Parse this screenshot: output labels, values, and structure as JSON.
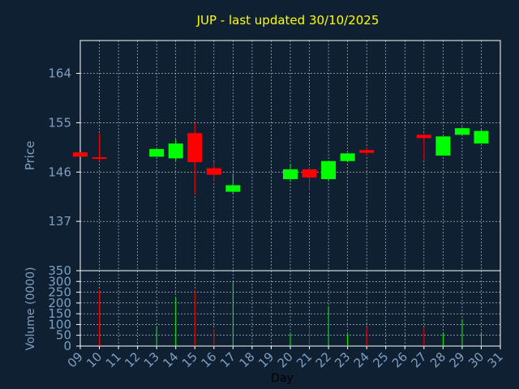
{
  "chart_data": {
    "type": "candlestick",
    "title": "JUP - last updated 30/10/2025",
    "xlabel": "Day",
    "price_ylabel": "Price",
    "volume_ylabel": "Volume (0000)",
    "price_ylim": [
      128,
      170
    ],
    "price_yticks": [
      "164",
      "155",
      "146",
      "137"
    ],
    "price_ytick_values": [
      164,
      155,
      146,
      137
    ],
    "volume_ylim": [
      0,
      350
    ],
    "volume_yticks": [
      "350",
      "300",
      "250",
      "200",
      "150",
      "100",
      "50",
      "0"
    ],
    "volume_ytick_values": [
      350,
      300,
      250,
      200,
      150,
      100,
      50,
      0
    ],
    "x_ticks": [
      "09",
      "10",
      "11",
      "12",
      "13",
      "14",
      "15",
      "16",
      "17",
      "18",
      "19",
      "20",
      "21",
      "22",
      "23",
      "24",
      "25",
      "26",
      "27",
      "28",
      "29",
      "30",
      "31"
    ],
    "colors": {
      "background": "#0f2033",
      "up": "#00ff00",
      "down": "#ff0000",
      "grid": "#ffffff",
      "axis_text": "#7f9fbf",
      "title": "#ffff00"
    },
    "candles": [
      {
        "day": "09",
        "open": 149.6,
        "high": 149.6,
        "low": 148.8,
        "close": 148.8,
        "volume": 0
      },
      {
        "day": "10",
        "open": 148.7,
        "high": 153.0,
        "low": 148.0,
        "close": 148.4,
        "volume": 260
      },
      {
        "day": "13",
        "open": 148.8,
        "high": 150.2,
        "low": 148.8,
        "close": 150.2,
        "volume": 90
      },
      {
        "day": "14",
        "open": 148.5,
        "high": 152.0,
        "low": 148.0,
        "close": 151.2,
        "volume": 225
      },
      {
        "day": "15",
        "open": 153.1,
        "high": 155.0,
        "low": 142.0,
        "close": 147.8,
        "volume": 260
      },
      {
        "day": "16",
        "open": 146.7,
        "high": 147.8,
        "low": 144.3,
        "close": 145.5,
        "volume": 80
      },
      {
        "day": "17",
        "open": 142.4,
        "high": 145.5,
        "low": 142.0,
        "close": 143.6,
        "volume": 300
      },
      {
        "day": "20",
        "open": 144.7,
        "high": 147.5,
        "low": 144.2,
        "close": 146.5,
        "volume": 60
      },
      {
        "day": "21",
        "open": 146.5,
        "high": 146.9,
        "low": 142.5,
        "close": 145.0,
        "volume": 85
      },
      {
        "day": "22",
        "open": 144.7,
        "high": 148.0,
        "low": 144.3,
        "close": 148.0,
        "volume": 185
      },
      {
        "day": "23",
        "open": 148.0,
        "high": 149.5,
        "low": 147.8,
        "close": 149.4,
        "volume": 55
      },
      {
        "day": "24",
        "open": 150.0,
        "high": 150.5,
        "low": 149.0,
        "close": 149.5,
        "volume": 90
      },
      {
        "day": "27",
        "open": 152.8,
        "high": 153.0,
        "low": 148.2,
        "close": 152.2,
        "volume": 85
      },
      {
        "day": "28",
        "open": 149.0,
        "high": 152.5,
        "low": 149.0,
        "close": 152.5,
        "volume": 60
      },
      {
        "day": "29",
        "open": 152.8,
        "high": 154.2,
        "low": 152.8,
        "close": 154.0,
        "volume": 125
      },
      {
        "day": "30",
        "open": 151.2,
        "high": 153.8,
        "low": 151.2,
        "close": 153.5,
        "volume": 65
      }
    ]
  }
}
